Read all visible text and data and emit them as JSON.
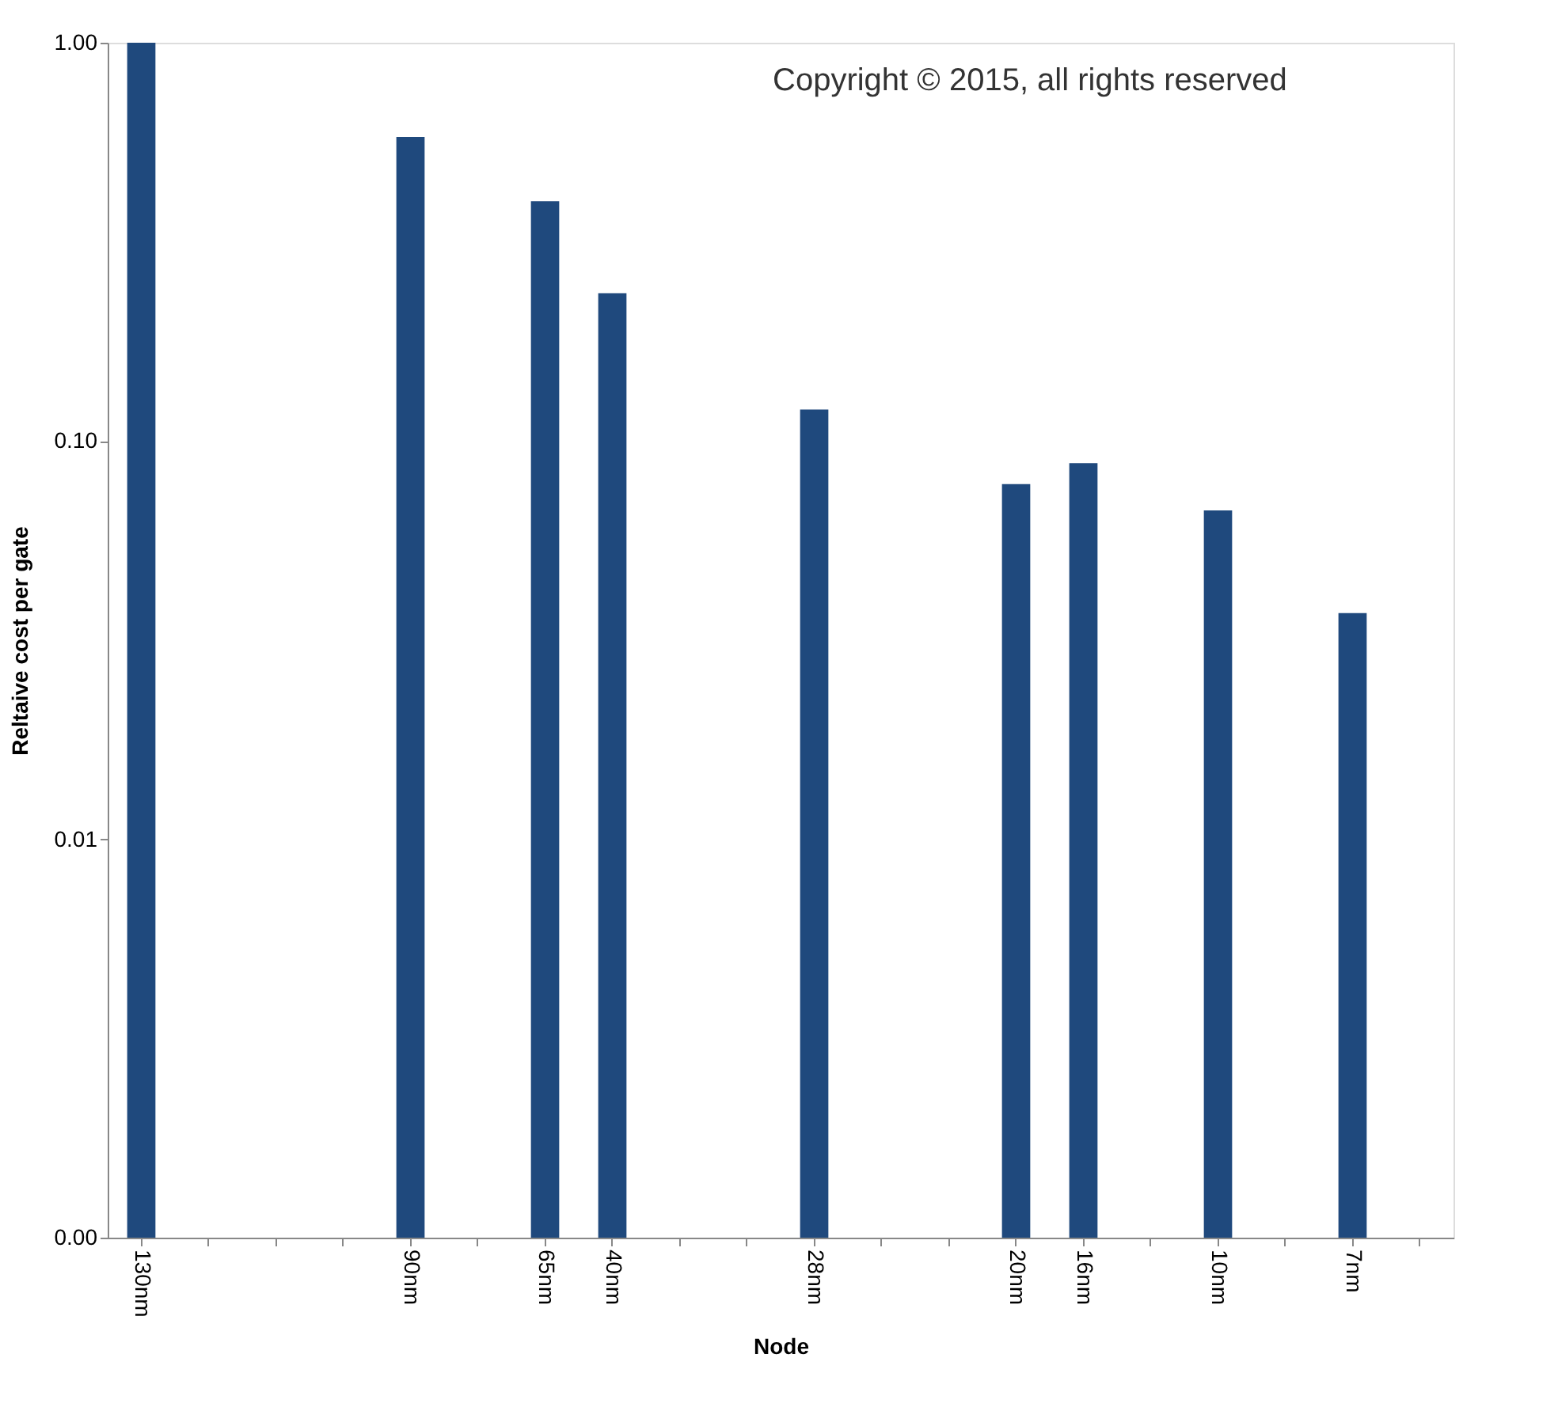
{
  "chart_data": {
    "type": "bar",
    "xlabel": "Node",
    "ylabel": "Reltaive cost per gate",
    "categories": [
      "130nm",
      null,
      null,
      null,
      "90nm",
      null,
      "65nm",
      "40nm",
      null,
      null,
      "28nm",
      null,
      null,
      "20nm",
      "16nm",
      null,
      "10nm",
      null,
      "7nm",
      null
    ],
    "values": [
      1.0,
      null,
      null,
      null,
      0.58,
      null,
      0.4,
      0.235,
      null,
      null,
      0.12,
      null,
      null,
      0.078,
      0.088,
      null,
      0.067,
      null,
      0.037,
      null
    ],
    "color": "#1f497d",
    "log": true,
    "ylim": [
      0.001,
      1
    ],
    "yticks": [
      {
        "value": 0.001,
        "label": "0.00"
      },
      {
        "value": 0.01,
        "label": "0.01"
      },
      {
        "value": 0.1,
        "label": "0.10"
      },
      {
        "value": 1,
        "label": "1.00"
      }
    ],
    "grid": false,
    "annotations": [
      "Copyright © 2015, all rights reserved"
    ]
  }
}
